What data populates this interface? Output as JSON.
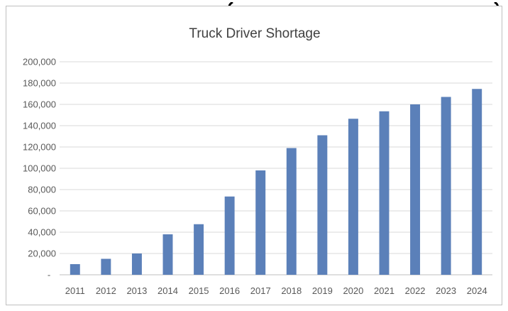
{
  "chart_data": {
    "type": "bar",
    "title": "Truck Driver Shortage",
    "xlabel": "",
    "ylabel": "",
    "categories": [
      "2011",
      "2012",
      "2013",
      "2014",
      "2015",
      "2016",
      "2017",
      "2018",
      "2019",
      "2020",
      "2021",
      "2022",
      "2023",
      "2024"
    ],
    "values": [
      10000,
      15000,
      20000,
      38000,
      47500,
      73500,
      98000,
      119000,
      131000,
      146500,
      153500,
      160000,
      167000,
      174500
    ],
    "ylim": [
      0,
      200000
    ],
    "yticks": [
      0,
      20000,
      40000,
      60000,
      80000,
      100000,
      120000,
      140000,
      160000,
      180000,
      200000
    ],
    "ytick_labels": [
      "-",
      "20,000",
      "40,000",
      "60,000",
      "80,000",
      "100,000",
      "120,000",
      "140,000",
      "160,000",
      "180,000",
      "200,000"
    ],
    "grid": true,
    "legend": "none",
    "colors": {
      "bar": "#5b80b9",
      "grid": "#d9d9d9",
      "axis": "#bfbfbf",
      "text": "#595959"
    }
  }
}
